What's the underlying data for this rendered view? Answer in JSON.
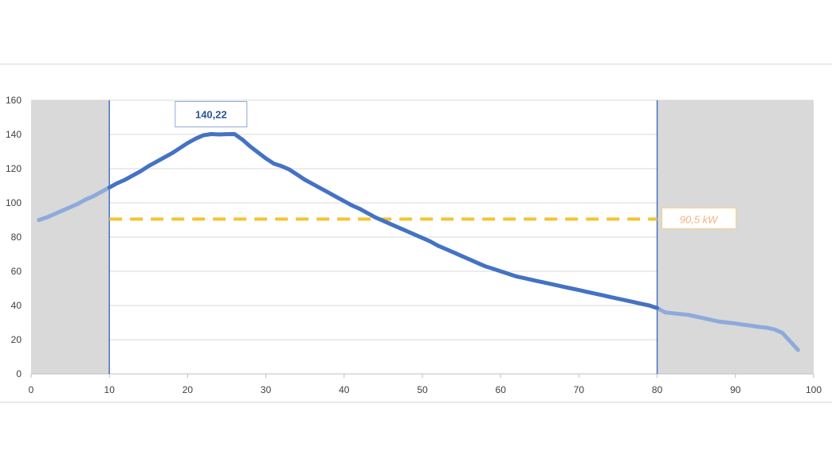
{
  "chart_data": {
    "type": "line",
    "title": "",
    "xlabel": "",
    "ylabel": "",
    "xlim": [
      0,
      100
    ],
    "ylim": [
      0,
      160
    ],
    "x_ticks": [
      0,
      10,
      20,
      30,
      40,
      50,
      60,
      70,
      80,
      90,
      100
    ],
    "y_ticks": [
      0,
      20,
      40,
      60,
      80,
      100,
      120,
      140,
      160
    ],
    "grid": "horizontal",
    "shaded_regions": [
      [
        0,
        10
      ],
      [
        80,
        100
      ]
    ],
    "vertical_markers": [
      10,
      80
    ],
    "series": [
      {
        "x": [
          1,
          2,
          3,
          4,
          5,
          6,
          7,
          8,
          9,
          10,
          11,
          12,
          13,
          14,
          15,
          16,
          17,
          18,
          19,
          20,
          21,
          22,
          23,
          24,
          25,
          26,
          27,
          28,
          29,
          30,
          31,
          32,
          33,
          34,
          35,
          36,
          37,
          38,
          39,
          40,
          41,
          42,
          43,
          44,
          45,
          46,
          47,
          48,
          49,
          50,
          51,
          52,
          53,
          54,
          55,
          56,
          57,
          58,
          59,
          60,
          61,
          62,
          63,
          64,
          65,
          66,
          67,
          68,
          69,
          70,
          71,
          72,
          73,
          74,
          75,
          76,
          77,
          78,
          79,
          80,
          81,
          82,
          83,
          84,
          85,
          86,
          87,
          88,
          89,
          90,
          91,
          92,
          93,
          94,
          95,
          96,
          97,
          98
        ],
        "values": [
          90,
          91.5,
          93.5,
          95.5,
          97.5,
          99.5,
          102,
          104,
          106.5,
          109,
          111.5,
          113.5,
          116,
          118.5,
          121.5,
          124,
          126.5,
          129,
          132,
          135,
          137.5,
          139.5,
          140.22,
          140,
          140.2,
          140.22,
          137,
          133,
          129.5,
          126,
          123,
          121.5,
          119.5,
          116.5,
          113.5,
          111,
          108.5,
          106,
          103.5,
          101,
          98.5,
          96.5,
          94,
          91.5,
          89.5,
          87.5,
          85.5,
          83.5,
          81.5,
          79.5,
          77.5,
          75,
          73,
          71,
          69,
          67,
          65,
          63,
          61.5,
          60,
          58.5,
          57,
          56,
          55,
          54,
          53,
          52,
          51,
          50,
          49,
          48,
          47,
          46,
          45,
          44,
          43,
          42,
          41,
          40,
          38.5,
          36,
          35.5,
          35,
          34.5,
          33.5,
          32.5,
          31.5,
          30.5,
          30,
          29.5,
          28.8,
          28.2,
          27.5,
          27,
          26,
          24,
          19,
          14
        ]
      },
      {
        "x": [
          10,
          80
        ],
        "values": [
          90.5,
          90.5
        ],
        "style": "dashed"
      }
    ],
    "annotations": [
      {
        "text": "140,22",
        "x": 23,
        "y": 140.22
      },
      {
        "text": "90,5 kW",
        "x": 80,
        "y": 90.5
      }
    ]
  },
  "colors": {
    "main_line": "#4472c4",
    "main_line_faded": "#8eaadb",
    "avg_line": "#f4c430",
    "marker_line": "#4472c4",
    "shade": "#d9d9d9",
    "grid": "#d9d9d9",
    "peak_text": "#2f5597",
    "avg_text": "#f4b183"
  }
}
